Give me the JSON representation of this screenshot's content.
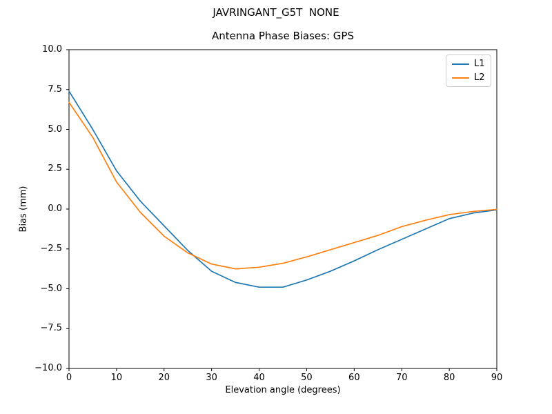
{
  "figure": {
    "suptitle": "JAVRINGANT_G5T  NONE",
    "background": "#ffffff",
    "axis_color": "#000000"
  },
  "chart_data": {
    "type": "line",
    "title": "Antenna Phase Biases: GPS",
    "xlabel": "Elevation angle (degrees)",
    "ylabel": "Bias (mm)",
    "xlim": [
      0,
      90
    ],
    "ylim": [
      -10,
      10
    ],
    "grid": false,
    "legend_position": "upper right",
    "x": [
      0,
      5,
      10,
      15,
      20,
      25,
      30,
      35,
      40,
      45,
      50,
      55,
      60,
      65,
      70,
      75,
      80,
      85,
      90
    ],
    "series": [
      {
        "name": "L1",
        "color": "#1f77b4",
        "values": [
          7.4,
          5.0,
          2.4,
          0.5,
          -1.05,
          -2.6,
          -3.9,
          -4.6,
          -4.9,
          -4.9,
          -4.45,
          -3.9,
          -3.25,
          -2.55,
          -1.9,
          -1.25,
          -0.6,
          -0.25,
          -0.05
        ]
      },
      {
        "name": "L2",
        "color": "#ff7f0e",
        "values": [
          6.7,
          4.5,
          1.7,
          -0.2,
          -1.7,
          -2.75,
          -3.45,
          -3.75,
          -3.65,
          -3.4,
          -3.0,
          -2.55,
          -2.1,
          -1.65,
          -1.1,
          -0.7,
          -0.35,
          -0.15,
          -0.02
        ]
      }
    ],
    "xticks": {
      "values": [
        0,
        10,
        20,
        30,
        40,
        50,
        60,
        70,
        80,
        90
      ],
      "labels": [
        "0",
        "10",
        "20",
        "30",
        "40",
        "50",
        "60",
        "70",
        "80",
        "90"
      ]
    },
    "yticks": {
      "values": [
        10,
        7.5,
        5,
        2.5,
        0,
        -2.5,
        -5,
        -7.5,
        -10
      ],
      "labels": [
        "10.0",
        "7.5",
        "5.0",
        "2.5",
        "0.0",
        "−2.5",
        "−5.0",
        "−7.5",
        "−10.0"
      ]
    }
  }
}
